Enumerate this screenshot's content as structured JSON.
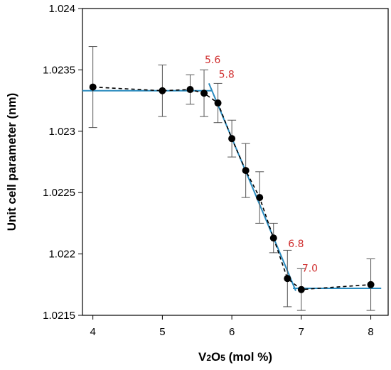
{
  "chart_data": {
    "type": "scatter",
    "title": "",
    "xlabel": "V2O5 (mol %)",
    "xlabel_parts": {
      "v": "V",
      "v_sub": "2",
      "o": "O",
      "o_sub": "5",
      "unit": " (mol %)"
    },
    "ylabel": "Unit cell parameter (nm)",
    "xlim": [
      3.85,
      8.25
    ],
    "ylim": [
      1.0215,
      1.024
    ],
    "grid": false,
    "legend": "none",
    "x_ticks": [
      {
        "value": 4,
        "label": "4"
      },
      {
        "value": 5,
        "label": "5"
      },
      {
        "value": 6,
        "label": "6"
      },
      {
        "value": 7,
        "label": "7"
      },
      {
        "value": 8,
        "label": "8"
      }
    ],
    "y_ticks": [
      {
        "value": 1.0215,
        "label": "1.0215"
      },
      {
        "value": 1.022,
        "label": "1.022"
      },
      {
        "value": 1.0225,
        "label": "1.0225"
      },
      {
        "value": 1.023,
        "label": "1.023"
      },
      {
        "value": 1.0235,
        "label": "1.0235"
      },
      {
        "value": 1.024,
        "label": "1.024"
      }
    ],
    "points": [
      {
        "x": 4.0,
        "y": 1.02336,
        "err": 0.00033
      },
      {
        "x": 5.0,
        "y": 1.02333,
        "err": 0.00021
      },
      {
        "x": 5.4,
        "y": 1.02334,
        "err": 0.00012
      },
      {
        "x": 5.6,
        "y": 1.02331,
        "err": 0.00019
      },
      {
        "x": 5.8,
        "y": 1.02323,
        "err": 0.00016
      },
      {
        "x": 6.0,
        "y": 1.02294,
        "err": 0.00015
      },
      {
        "x": 6.2,
        "y": 1.02268,
        "err": 0.00022
      },
      {
        "x": 6.4,
        "y": 1.02246,
        "err": 0.00021
      },
      {
        "x": 6.6,
        "y": 1.02213,
        "err": 0.00012
      },
      {
        "x": 6.8,
        "y": 1.0218,
        "err": 0.00023
      },
      {
        "x": 7.0,
        "y": 1.02171,
        "err": 0.00017
      },
      {
        "x": 8.0,
        "y": 1.02175,
        "err": 0.00021
      }
    ],
    "fit_lines": [
      {
        "x": [
          3.85,
          5.72
        ],
        "y": [
          1.02333,
          1.02333
        ]
      },
      {
        "x": [
          5.67,
          6.92
        ],
        "y": [
          1.02339,
          1.0217
        ]
      },
      {
        "x": [
          6.88,
          8.15
        ],
        "y": [
          1.02172,
          1.02172
        ]
      }
    ],
    "annotations": [
      {
        "text": "5.6",
        "x": 5.6,
        "y": 1.023555
      },
      {
        "text": "5.8",
        "x": 5.8,
        "y": 1.023435
      },
      {
        "text": "6.8",
        "x": 6.8,
        "y": 1.022055
      },
      {
        "text": "7.0",
        "x": 7.0,
        "y": 1.021855
      }
    ],
    "colors": {
      "fit": "#2a8bbf",
      "points": "#000000",
      "annotations": "#d03030",
      "error_bars": "#555555"
    }
  }
}
